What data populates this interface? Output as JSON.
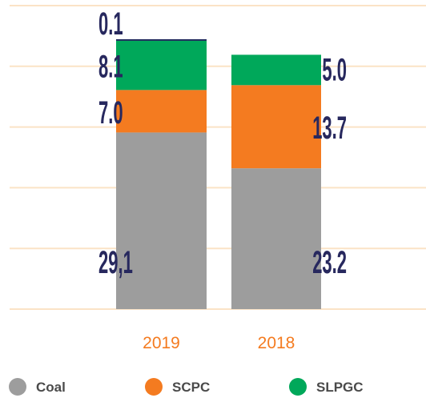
{
  "chart_data": {
    "type": "stacked_bar",
    "categories": [
      "2019",
      "2018"
    ],
    "series": [
      {
        "name": "Coal",
        "color": "#9d9d9d",
        "values": [
          29.1,
          23.2
        ],
        "value_labels": [
          "29,1",
          "23.2"
        ]
      },
      {
        "name": "SCPC",
        "color": "#f47b20",
        "values": [
          7.0,
          13.7
        ],
        "value_labels": [
          "7.0",
          "13.7"
        ]
      },
      {
        "name": "SLPGC",
        "color": "#00a85a",
        "values": [
          8.1,
          5.0
        ],
        "value_labels": [
          "8.1",
          "5.0"
        ]
      },
      {
        "color": "#1f2a5c",
        "values": [
          0.1,
          null
        ],
        "value_labels": [
          "0.1",
          null
        ]
      }
    ],
    "ylim": [
      0,
      50
    ],
    "yticks": [
      0,
      10,
      20,
      30,
      40,
      50
    ],
    "grid": true,
    "grid_color": "#fbe3c6",
    "category_label_color": "#f47b20",
    "value_label_color": "#27285e"
  }
}
